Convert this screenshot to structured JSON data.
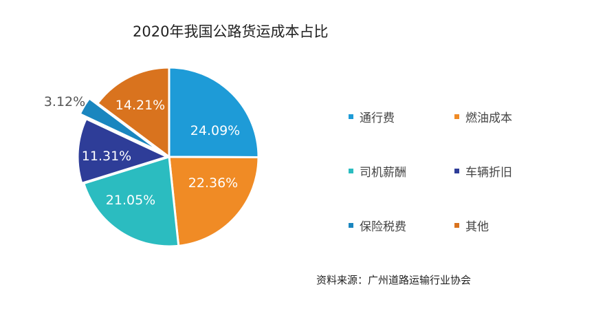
{
  "chart_data": {
    "type": "pie",
    "title": "2020年我国公路货运成本占比",
    "categories": [
      "通行费",
      "燃油成本",
      "司机薪酬",
      "车辆折旧",
      "保险税费",
      "其他"
    ],
    "values": [
      24.09,
      22.36,
      21.05,
      11.31,
      3.12,
      14.21
    ],
    "value_labels": [
      "24.09%",
      "22.36%",
      "21.05%",
      "11.31%",
      "3.12%",
      "14.21%"
    ],
    "unit": "%",
    "colors": [
      "#1e9bd7",
      "#f08b25",
      "#2bbcc0",
      "#2e3d98",
      "#1a86bf",
      "#d9731e"
    ],
    "legend_position": "right",
    "start_angle_deg": 0,
    "direction": "clockwise"
  },
  "source": "资料来源：广州道路运输行业协会"
}
